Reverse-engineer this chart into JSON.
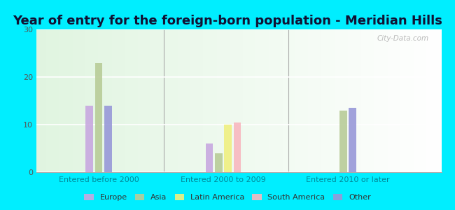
{
  "title": "Year of entry for the foreign-born population - Meridian Hills",
  "groups": [
    "Entered before 2000",
    "Entered 2000 to 2009",
    "Entered 2010 or later"
  ],
  "categories": [
    "Europe",
    "Asia",
    "Latin America",
    "South America",
    "Other"
  ],
  "colors": [
    "#c8a8e0",
    "#b8cc98",
    "#f0f080",
    "#f8b8c0",
    "#9898d8"
  ],
  "values": {
    "Entered before 2000": [
      14,
      23,
      0,
      0,
      14
    ],
    "Entered 2000 to 2009": [
      6,
      4,
      10,
      10.5,
      0
    ],
    "Entered 2010 or later": [
      0,
      13,
      0,
      0,
      13.5
    ]
  },
  "ylim": [
    0,
    30
  ],
  "yticks": [
    0,
    10,
    20,
    30
  ],
  "background_color": "#00eeff",
  "watermark": "City-Data.com",
  "bar_width": 0.12,
  "group_positions": [
    1.5,
    3.5,
    5.5
  ],
  "xlim": [
    0.5,
    7.0
  ],
  "title_fontsize": 13,
  "title_color": "#111133",
  "xlabel_color": "#008899",
  "ylabel_color": "#555555",
  "grid_color": "#dddddd"
}
